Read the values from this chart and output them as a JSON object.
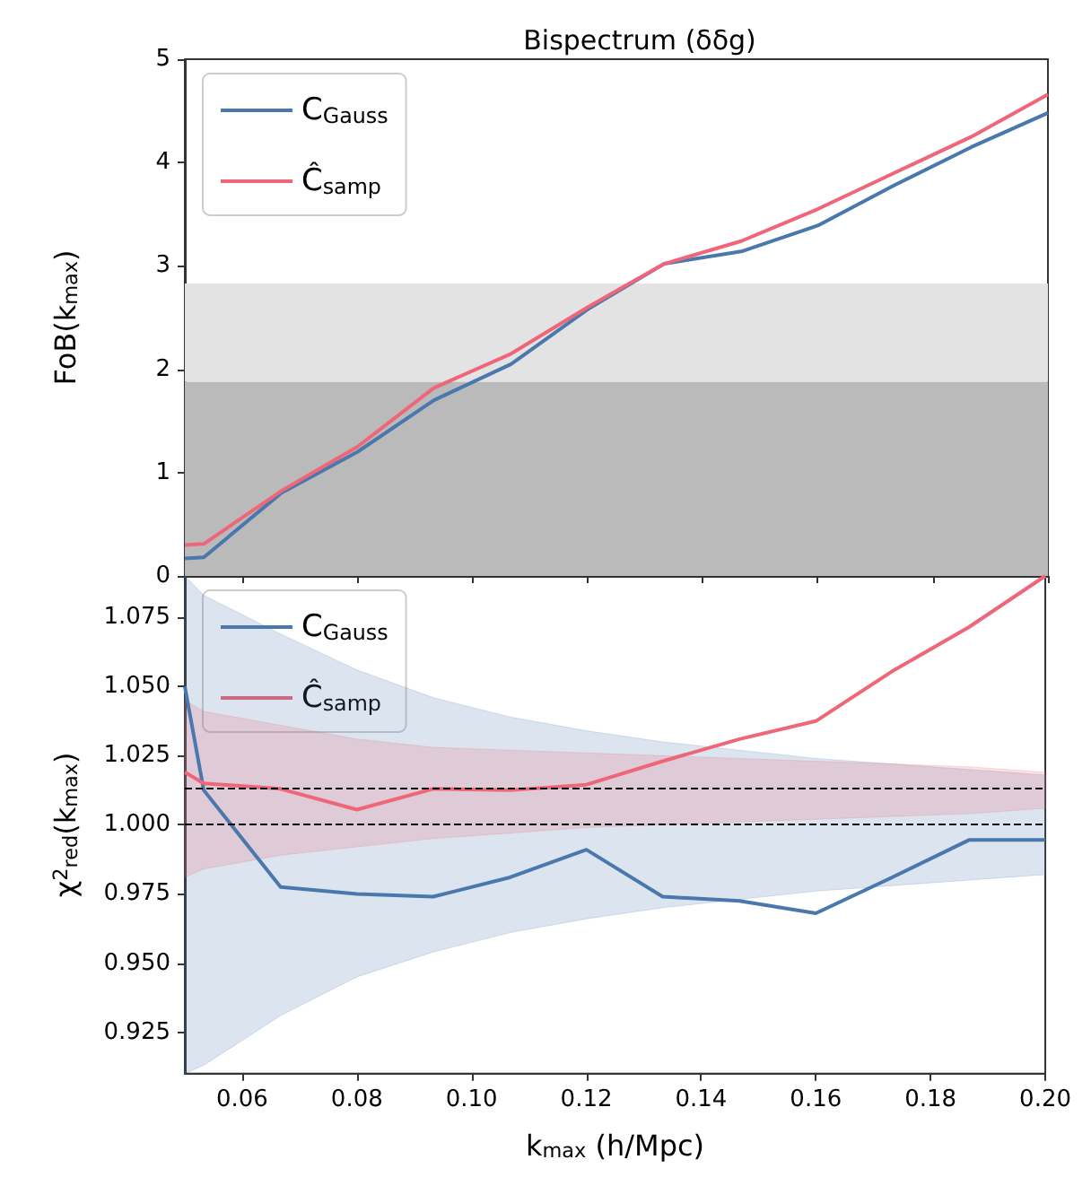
{
  "chart_data": [
    {
      "type": "line",
      "title": "Bispectrum (δδg)",
      "ylabel": "FoB(k$_{max}$)",
      "x": [
        0.05,
        0.0533,
        0.0667,
        0.08,
        0.0933,
        0.1067,
        0.12,
        0.1333,
        0.1467,
        0.16,
        0.1733,
        0.1867,
        0.2
      ],
      "series": [
        {
          "name": "C$_{Gauss}$",
          "color": "#4a78ad",
          "values": [
            0.17,
            0.18,
            0.8,
            1.2,
            1.7,
            2.05,
            2.58,
            3.02,
            3.14,
            3.39,
            3.78,
            4.15,
            4.48
          ]
        },
        {
          "name": "Ĉ$_{samp}$",
          "color": "#ee6677",
          "values": [
            0.3,
            0.31,
            0.82,
            1.25,
            1.82,
            2.15,
            2.6,
            3.02,
            3.24,
            3.55,
            3.9,
            4.25,
            4.66
          ]
        }
      ],
      "xlim": [
        0.05,
        0.2
      ],
      "xticks": [
        0.06,
        0.08,
        0.1,
        0.12,
        0.14,
        0.16,
        0.18,
        0.2
      ],
      "ylim": [
        0,
        5
      ],
      "yticks": [
        0,
        1,
        2,
        3,
        4,
        5
      ],
      "tick_labels": "y",
      "legend": "top left",
      "bands": [
        {
          "axis": "y",
          "from": 0,
          "to": 1.88,
          "color": "#bababa"
        },
        {
          "axis": "y",
          "from": 1.88,
          "to": 2.83,
          "color": "#e3e3e3"
        }
      ]
    },
    {
      "type": "line",
      "xlabel": "k$_{max}$ (h/Mpc)",
      "ylabel": "χ$^{2}$$_{red}$(k$_{max}$)",
      "x": [
        0.05,
        0.0533,
        0.0667,
        0.08,
        0.0933,
        0.1067,
        0.12,
        0.1333,
        0.1467,
        0.16,
        0.1733,
        0.1867,
        0.2
      ],
      "series": [
        {
          "name": "C$_{Gauss}$",
          "color": "#4a78ad",
          "values": [
            1.05,
            1.0125,
            0.9775,
            0.975,
            0.974,
            0.981,
            0.991,
            0.974,
            0.9725,
            0.968,
            0.981,
            0.9945,
            0.9945
          ],
          "lower": [
            0.91,
            0.913,
            0.931,
            0.945,
            0.954,
            0.961,
            0.966,
            0.97,
            0.973,
            0.976,
            0.978,
            0.98,
            0.982
          ],
          "upper": [
            1.09,
            1.083,
            1.069,
            1.056,
            1.046,
            1.039,
            1.034,
            1.03,
            1.027,
            1.024,
            1.022,
            1.02,
            1.018
          ]
        },
        {
          "name": "Ĉ$_{samp}$",
          "color": "#ee6677",
          "values": [
            1.019,
            1.015,
            1.013,
            1.0055,
            1.013,
            1.0125,
            1.0145,
            1.023,
            1.031,
            1.0375,
            1.0555,
            1.0715,
            1.09
          ],
          "lower": [
            0.981,
            0.984,
            0.989,
            0.992,
            0.995,
            0.997,
            0.999,
            1.0,
            1.001,
            1.002,
            1.003,
            1.004,
            1.006
          ],
          "upper": [
            1.045,
            1.041,
            1.036,
            1.031,
            1.028,
            1.027,
            1.026,
            1.025,
            1.024,
            1.023,
            1.022,
            1.021,
            1.019
          ]
        }
      ],
      "xlim": [
        0.05,
        0.2
      ],
      "xticks": [
        {
          "value": 0.06,
          "label": "0.06"
        },
        {
          "value": 0.08,
          "label": "0.08"
        },
        {
          "value": 0.1,
          "label": "0.10"
        },
        {
          "value": 0.12,
          "label": "0.12"
        },
        {
          "value": 0.14,
          "label": "0.14"
        },
        {
          "value": 0.16,
          "label": "0.16"
        },
        {
          "value": 0.18,
          "label": "0.18"
        },
        {
          "value": 0.2,
          "label": "0.20"
        }
      ],
      "ylim": [
        0.91,
        1.09
      ],
      "yticks": [
        {
          "value": 0.925,
          "label": "0.925"
        },
        {
          "value": 0.95,
          "label": "0.950"
        },
        {
          "value": 0.975,
          "label": "0.975"
        },
        {
          "value": 1.0,
          "label": "1.000"
        },
        {
          "value": 1.025,
          "label": "1.025"
        },
        {
          "value": 1.05,
          "label": "1.050"
        },
        {
          "value": 1.075,
          "label": "1.075"
        }
      ],
      "legend": "top left",
      "ref_lines": [
        {
          "axis": "y",
          "value": 1.0,
          "color": "#000000",
          "line_style": "dashed"
        },
        {
          "axis": "y",
          "value": 1.0135,
          "color": "#000000",
          "line_style": "dashed"
        }
      ]
    }
  ]
}
